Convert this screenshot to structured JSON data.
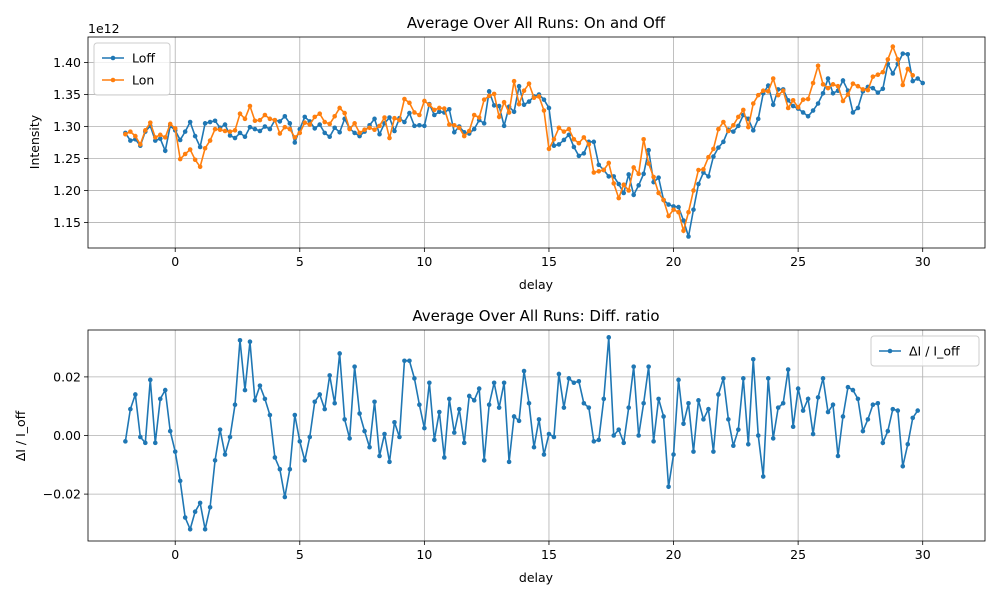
{
  "colors": {
    "loff": "#1f77b4",
    "lon": "#ff7f0e",
    "ratio": "#1f77b4"
  },
  "chart_data": [
    {
      "type": "line",
      "title": "Average Over All Runs: On and Off",
      "xlabel": "delay",
      "ylabel": "Intensity",
      "offset_label": "1e12",
      "xlim": [
        -3.5,
        32.5
      ],
      "ylim": [
        1.11,
        1.44
      ],
      "xticks": [
        0,
        5,
        10,
        15,
        20,
        25,
        30
      ],
      "xtick_labels": [
        "0",
        "5",
        "10",
        "15",
        "20",
        "25",
        "30"
      ],
      "yticks": [
        1.15,
        1.2,
        1.25,
        1.3,
        1.35,
        1.4
      ],
      "ytick_labels": [
        "1.15",
        "1.20",
        "1.25",
        "1.30",
        "1.35",
        "1.40"
      ],
      "grid": true,
      "legend_position": "upper-left",
      "x_start": -2.0,
      "x_step": 0.2,
      "series": [
        {
          "name": "Loff",
          "values": [
            1.29,
            1.278,
            1.28,
            1.27,
            1.292,
            1.301,
            1.278,
            1.281,
            1.262,
            1.301,
            1.294,
            1.279,
            1.292,
            1.307,
            1.285,
            1.268,
            1.305,
            1.307,
            1.309,
            1.298,
            1.303,
            1.286,
            1.282,
            1.29,
            1.284,
            1.299,
            1.296,
            1.293,
            1.3,
            1.296,
            1.31,
            1.308,
            1.316,
            1.305,
            1.275,
            1.296,
            1.315,
            1.308,
            1.297,
            1.303,
            1.29,
            1.284,
            1.298,
            1.291,
            1.312,
            1.297,
            1.29,
            1.285,
            1.292,
            1.302,
            1.312,
            1.288,
            1.305,
            1.314,
            1.293,
            1.313,
            1.307,
            1.321,
            1.301,
            1.302,
            1.301,
            1.335,
            1.318,
            1.323,
            1.322,
            1.327,
            1.291,
            1.3,
            1.291,
            1.289,
            1.296,
            1.31,
            1.305,
            1.355,
            1.333,
            1.332,
            1.301,
            1.331,
            1.323,
            1.363,
            1.334,
            1.339,
            1.347,
            1.35,
            1.342,
            1.329,
            1.27,
            1.272,
            1.279,
            1.287,
            1.268,
            1.254,
            1.258,
            1.276,
            1.276,
            1.24,
            1.232,
            1.222,
            1.222,
            1.21,
            1.196,
            1.225,
            1.193,
            1.208,
            1.226,
            1.263,
            1.213,
            1.22,
            1.185,
            1.178,
            1.175,
            1.174,
            1.153,
            1.128,
            1.17,
            1.21,
            1.228,
            1.222,
            1.253,
            1.267,
            1.276,
            1.295,
            1.292,
            1.301,
            1.318,
            1.312,
            1.294,
            1.312,
            1.352,
            1.364,
            1.334,
            1.358,
            1.358,
            1.341,
            1.332,
            1.328,
            1.322,
            1.316,
            1.325,
            1.336,
            1.352,
            1.375,
            1.352,
            1.356,
            1.372,
            1.356,
            1.322,
            1.329,
            1.355,
            1.362,
            1.36,
            1.353,
            1.359,
            1.398,
            1.383,
            1.398,
            1.414,
            1.413,
            1.371,
            1.375,
            1.368
          ]
        },
        {
          "name": "Lon",
          "values": [
            1.288,
            1.292,
            1.285,
            1.272,
            1.294,
            1.306,
            1.283,
            1.287,
            1.283,
            1.304,
            1.297,
            1.249,
            1.257,
            1.264,
            1.248,
            1.237,
            1.266,
            1.278,
            1.296,
            1.295,
            1.293,
            1.292,
            1.294,
            1.32,
            1.312,
            1.332,
            1.309,
            1.31,
            1.318,
            1.312,
            1.31,
            1.289,
            1.299,
            1.296,
            1.283,
            1.29,
            1.306,
            1.303,
            1.315,
            1.32,
            1.307,
            1.304,
            1.316,
            1.329,
            1.321,
            1.296,
            1.305,
            1.29,
            1.295,
            1.298,
            1.295,
            1.301,
            1.314,
            1.282,
            1.313,
            1.31,
            1.343,
            1.337,
            1.322,
            1.318,
            1.34,
            1.334,
            1.326,
            1.329,
            1.328,
            1.303,
            1.302,
            1.298,
            1.285,
            1.293,
            1.318,
            1.314,
            1.342,
            1.348,
            1.351,
            1.315,
            1.338,
            1.322,
            1.371,
            1.335,
            1.356,
            1.367,
            1.345,
            1.347,
            1.325,
            1.265,
            1.28,
            1.298,
            1.292,
            1.296,
            1.28,
            1.274,
            1.283,
            1.272,
            1.228,
            1.23,
            1.232,
            1.243,
            1.211,
            1.188,
            1.209,
            1.2,
            1.236,
            1.226,
            1.28,
            1.242,
            1.221,
            1.196,
            1.185,
            1.16,
            1.17,
            1.166,
            1.137,
            1.166,
            1.2,
            1.232,
            1.233,
            1.252,
            1.265,
            1.296,
            1.307,
            1.293,
            1.302,
            1.315,
            1.326,
            1.299,
            1.336,
            1.349,
            1.356,
            1.355,
            1.375,
            1.349,
            1.356,
            1.329,
            1.341,
            1.33,
            1.342,
            1.343,
            1.368,
            1.395,
            1.366,
            1.36,
            1.366,
            1.363,
            1.34,
            1.35,
            1.367,
            1.363,
            1.358,
            1.357,
            1.378,
            1.381,
            1.385,
            1.405,
            1.425,
            1.405,
            1.365,
            1.39,
            1.38
          ]
        }
      ]
    },
    {
      "type": "line",
      "title": "Average Over All Runs: Diff. ratio",
      "xlabel": "delay",
      "ylabel": "ΔI / I_off",
      "xlim": [
        -3.5,
        32.5
      ],
      "ylim": [
        -0.036,
        0.036
      ],
      "xticks": [
        0,
        5,
        10,
        15,
        20,
        25,
        30
      ],
      "xtick_labels": [
        "0",
        "5",
        "10",
        "15",
        "20",
        "25",
        "30"
      ],
      "yticks": [
        -0.02,
        0.0,
        0.02
      ],
      "ytick_labels": [
        "−0.02",
        "0.00",
        "0.02"
      ],
      "grid": true,
      "legend_position": "upper-right",
      "x_start": -2.0,
      "x_step": 0.2,
      "series": [
        {
          "name": "ΔI / I_off",
          "values": [
            -0.002,
            0.009,
            0.014,
            -0.0005,
            -0.0025,
            0.019,
            -0.0025,
            0.0125,
            0.0155,
            0.0015,
            -0.0055,
            -0.0155,
            -0.028,
            -0.032,
            -0.026,
            -0.023,
            -0.032,
            -0.0245,
            -0.0085,
            0.002,
            -0.0065,
            -0.0005,
            0.0105,
            0.0325,
            0.0155,
            0.032,
            0.012,
            0.017,
            0.0125,
            0.007,
            -0.0075,
            -0.0115,
            -0.021,
            -0.0115,
            0.007,
            -0.002,
            -0.0085,
            -0.0005,
            0.0115,
            0.014,
            0.009,
            0.0205,
            0.011,
            0.028,
            0.0055,
            -0.001,
            0.0235,
            0.0075,
            0.0015,
            -0.004,
            0.0115,
            -0.007,
            0.0005,
            -0.009,
            0.0045,
            -0.0005,
            0.0255,
            0.0255,
            0.0195,
            0.0105,
            0.0025,
            0.018,
            -0.0015,
            0.008,
            -0.0075,
            0.0125,
            0.001,
            0.009,
            -0.0025,
            0.0135,
            0.012,
            0.016,
            -0.0085,
            0.0105,
            0.018,
            0.0095,
            0.018,
            -0.009,
            0.0065,
            0.005,
            0.022,
            0.011,
            -0.004,
            0.0055,
            -0.0065,
            0.0005,
            -0.0005,
            0.021,
            0.0095,
            0.0195,
            0.018,
            0.0185,
            0.011,
            0.0095,
            -0.002,
            -0.0015,
            0.0125,
            0.0335,
            0.0,
            0.002,
            -0.0025,
            0.0095,
            0.0235,
            0.0,
            0.011,
            0.0235,
            -0.002,
            0.0125,
            0.0065,
            -0.0175,
            -0.0065,
            0.019,
            0.004,
            0.011,
            -0.0055,
            0.012,
            0.0055,
            0.009,
            -0.0055,
            0.014,
            0.0195,
            0.0055,
            -0.0035,
            0.002,
            0.0195,
            -0.003,
            0.026,
            0.0,
            -0.014,
            0.0195,
            -0.001,
            0.0095,
            0.011,
            0.0225,
            0.003,
            0.016,
            0.0085,
            0.0125,
            0.0005,
            0.013,
            0.0195,
            0.008,
            0.0105,
            -0.007,
            0.0065,
            0.0165,
            0.0155,
            0.0125,
            0.0015,
            0.0055,
            0.0105,
            0.011,
            -0.0025,
            0.0015,
            0.009,
            0.0085,
            -0.0105,
            -0.003,
            0.006,
            0.0085
          ]
        }
      ]
    }
  ]
}
